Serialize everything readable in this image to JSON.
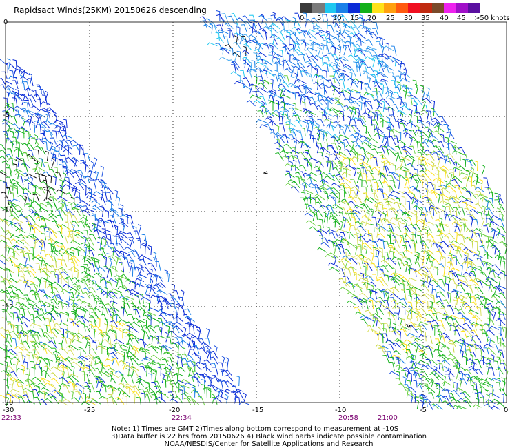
{
  "title": "Rapidsact Winds(25KM) 20150626 descending",
  "legend": {
    "swatches": [
      "#3a3a3a",
      "#7a7a7a",
      "#1fc8f0",
      "#1a80e8",
      "#0a2bd6",
      "#12b01a",
      "#ffe21a",
      "#ffa010",
      "#ff5a10",
      "#f01020",
      "#c02a10",
      "#7a4a2a",
      "#ee22ee",
      "#a010c8",
      "#5a10a0"
    ],
    "labels": [
      "0",
      "5",
      "10",
      "15",
      "20",
      "25",
      "30",
      "35",
      "40",
      "45",
      ">50 knots"
    ]
  },
  "axes": {
    "x_ticks": [
      "-30",
      "-25",
      "-20",
      "-15",
      "-10",
      "-5",
      "0"
    ],
    "y_ticks": [
      "0",
      "-5",
      "-10",
      "-15",
      "-20"
    ]
  },
  "times": [
    "22:33",
    "22:34",
    "20:58",
    "21:00"
  ],
  "notes": [
    "Note: 1) Times are GMT 2)Times along bottom correspond to measurement at -10S",
    "3)Data buffer is 22 hrs from 20150626 4) Black wind barbs indicate possible contamination",
    "NOAA/NESDIS/Center for Satellite Applications and Research"
  ],
  "colors": {
    "time_label": "#7a0070",
    "grid": "#333333"
  }
}
